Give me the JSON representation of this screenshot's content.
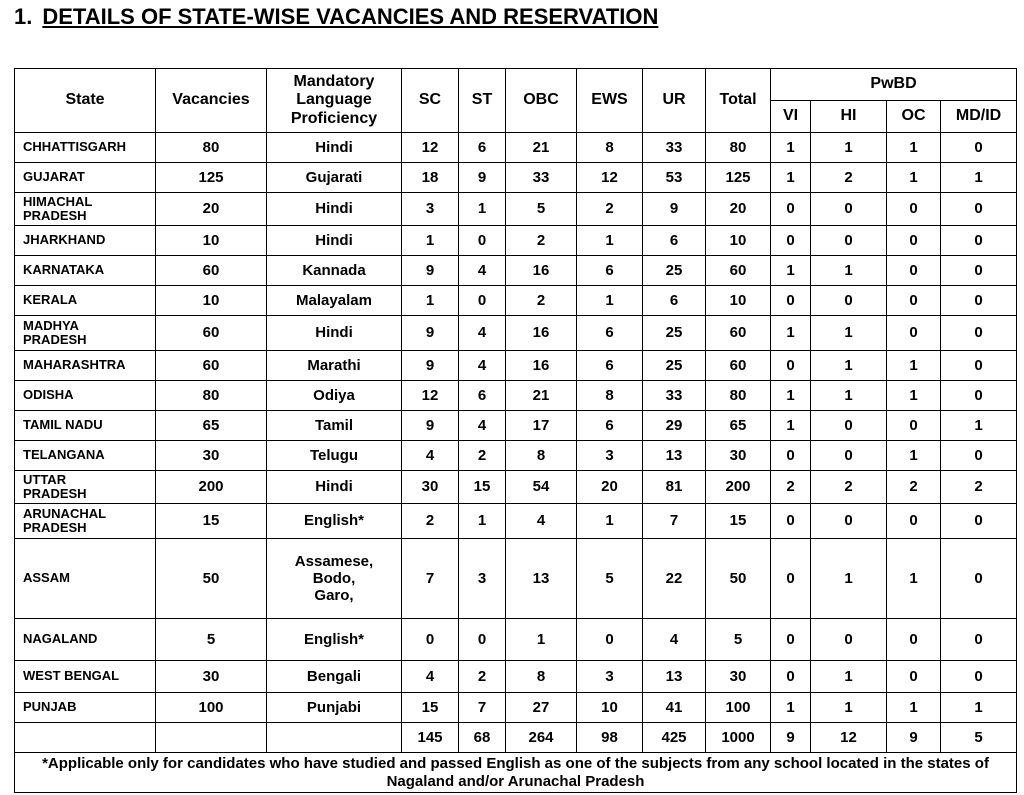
{
  "heading": {
    "number": "1.",
    "title": "DETAILS OF STATE-WISE VACANCIES AND RESERVATION"
  },
  "table": {
    "columns": [
      "State",
      "Vacancies",
      "Mandatory\nLanguage\nProficiency",
      "SC",
      "ST",
      "OBC",
      "EWS",
      "UR",
      "Total"
    ],
    "group": "PwBD",
    "subcolumns": [
      "VI",
      "HI",
      "OC",
      "MD/ID"
    ],
    "rows": [
      [
        "CHHATTISGARH",
        "80",
        "Hindi",
        "12",
        "6",
        "21",
        "8",
        "33",
        "80",
        "1",
        "1",
        "1",
        "0"
      ],
      [
        "GUJARAT",
        "125",
        "Gujarati",
        "18",
        "9",
        "33",
        "12",
        "53",
        "125",
        "1",
        "2",
        "1",
        "1"
      ],
      [
        "HIMACHAL\nPRADESH",
        "20",
        "Hindi",
        "3",
        "1",
        "5",
        "2",
        "9",
        "20",
        "0",
        "0",
        "0",
        "0"
      ],
      [
        "JHARKHAND",
        "10",
        "Hindi",
        "1",
        "0",
        "2",
        "1",
        "6",
        "10",
        "0",
        "0",
        "0",
        "0"
      ],
      [
        "KARNATAKA",
        "60",
        "Kannada",
        "9",
        "4",
        "16",
        "6",
        "25",
        "60",
        "1",
        "1",
        "0",
        "0"
      ],
      [
        "KERALA",
        "10",
        "Malayalam",
        "1",
        "0",
        "2",
        "1",
        "6",
        "10",
        "0",
        "0",
        "0",
        "0"
      ],
      [
        "MADHYA\nPRADESH",
        "60",
        "Hindi",
        "9",
        "4",
        "16",
        "6",
        "25",
        "60",
        "1",
        "1",
        "0",
        "0"
      ],
      [
        "MAHARASHTRA",
        "60",
        "Marathi",
        "9",
        "4",
        "16",
        "6",
        "25",
        "60",
        "0",
        "1",
        "1",
        "0"
      ],
      [
        "ODISHA",
        "80",
        "Odiya",
        "12",
        "6",
        "21",
        "8",
        "33",
        "80",
        "1",
        "1",
        "1",
        "0"
      ],
      [
        "TAMIL NADU",
        "65",
        "Tamil",
        "9",
        "4",
        "17",
        "6",
        "29",
        "65",
        "1",
        "0",
        "0",
        "1"
      ],
      [
        "TELANGANA",
        "30",
        "Telugu",
        "4",
        "2",
        "8",
        "3",
        "13",
        "30",
        "0",
        "0",
        "1",
        "0"
      ],
      [
        "UTTAR\nPRADESH",
        "200",
        "Hindi",
        "30",
        "15",
        "54",
        "20",
        "81",
        "200",
        "2",
        "2",
        "2",
        "2"
      ],
      [
        "ARUNACHAL\nPRADESH",
        "15",
        "English*",
        "2",
        "1",
        "4",
        "1",
        "7",
        "15",
        "0",
        "0",
        "0",
        "0"
      ],
      [
        "ASSAM",
        "50",
        "Assamese,\nBodo,\nGaro,",
        "7",
        "3",
        "13",
        "5",
        "22",
        "50",
        "0",
        "1",
        "1",
        "0"
      ],
      [
        "NAGALAND",
        "5",
        "English*",
        "0",
        "0",
        "1",
        "0",
        "4",
        "5",
        "0",
        "0",
        "0",
        "0"
      ],
      [
        "WEST BENGAL",
        "30",
        "Bengali",
        "4",
        "2",
        "8",
        "3",
        "13",
        "30",
        "0",
        "1",
        "0",
        "0"
      ],
      [
        "PUNJAB",
        "100",
        "Punjabi",
        "15",
        "7",
        "27",
        "10",
        "41",
        "100",
        "1",
        "1",
        "1",
        "1"
      ]
    ],
    "totals": [
      "145",
      "68",
      "264",
      "98",
      "425",
      "1000",
      "9",
      "12",
      "9",
      "5"
    ],
    "footnote": "*Applicable only for candidates who have studied and passed English as one of the subjects from any school located in the states of Nagaland and/or Arunachal Pradesh"
  }
}
